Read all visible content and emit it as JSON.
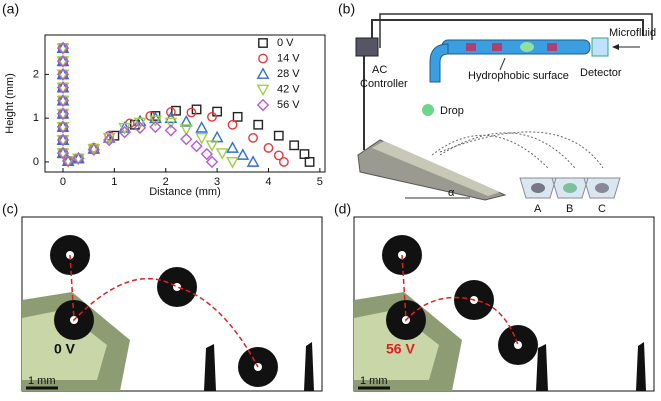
{
  "chart_data": {
    "type": "scatter",
    "xlabel": "Distance (mm)",
    "ylabel": "Height (mm)",
    "xlim": [
      -0.35,
      5.1
    ],
    "ylim": [
      -0.23,
      2.9
    ],
    "xticks": [
      0,
      1,
      2,
      3,
      4,
      5
    ],
    "yticks": [
      0,
      1,
      2
    ],
    "legend": "upper right",
    "series": [
      {
        "name": "0 V",
        "color": "#222222",
        "marker": "square",
        "x": [
          0,
          0,
          0,
          0,
          0,
          0,
          0,
          0,
          0,
          0.1,
          0.3,
          0.6,
          1.0,
          1.4,
          1.8,
          2.2,
          2.6,
          3.0,
          3.4,
          3.8,
          4.2,
          4.5,
          4.7,
          4.8
        ],
        "y": [
          2.6,
          2.3,
          2.0,
          1.7,
          1.4,
          1.1,
          0.8,
          0.5,
          0.2,
          0.02,
          0.08,
          0.3,
          0.6,
          0.85,
          1.05,
          1.17,
          1.2,
          1.15,
          1.03,
          0.85,
          0.6,
          0.38,
          0.18,
          0
        ]
      },
      {
        "name": "14 V",
        "color": "#e8393a",
        "marker": "circle",
        "x": [
          0,
          0,
          0,
          0,
          0,
          0,
          0,
          0,
          0,
          0.1,
          0.3,
          0.6,
          0.9,
          1.3,
          1.7,
          2.1,
          2.5,
          2.9,
          3.3,
          3.7,
          4.0,
          4.2,
          4.3
        ],
        "y": [
          2.6,
          2.3,
          2.0,
          1.7,
          1.4,
          1.1,
          0.8,
          0.5,
          0.2,
          0.02,
          0.08,
          0.32,
          0.6,
          0.88,
          1.05,
          1.14,
          1.13,
          1.03,
          0.85,
          0.55,
          0.32,
          0.15,
          0
        ]
      },
      {
        "name": "28 V",
        "color": "#2e6fd6",
        "marker": "triangle",
        "x": [
          0,
          0,
          0,
          0,
          0,
          0,
          0,
          0,
          0,
          0.1,
          0.3,
          0.6,
          0.9,
          1.2,
          1.5,
          1.8,
          2.1,
          2.4,
          2.7,
          3.0,
          3.3,
          3.5,
          3.7
        ],
        "y": [
          2.6,
          2.3,
          2.0,
          1.7,
          1.4,
          1.1,
          0.8,
          0.5,
          0.2,
          0.02,
          0.08,
          0.3,
          0.55,
          0.78,
          0.93,
          1.0,
          1.0,
          0.92,
          0.78,
          0.56,
          0.32,
          0.16,
          0
        ]
      },
      {
        "name": "42 V",
        "color": "#9ed13c",
        "marker": "triangle-down",
        "x": [
          0,
          0,
          0,
          0,
          0,
          0,
          0,
          0,
          0,
          0.1,
          0.3,
          0.6,
          0.9,
          1.2,
          1.5,
          1.8,
          2.1,
          2.4,
          2.7,
          2.9,
          3.1,
          3.3
        ],
        "y": [
          2.6,
          2.3,
          2.0,
          1.7,
          1.4,
          1.1,
          0.8,
          0.5,
          0.2,
          0.02,
          0.08,
          0.3,
          0.55,
          0.78,
          0.9,
          0.95,
          0.9,
          0.75,
          0.55,
          0.38,
          0.2,
          0
        ]
      },
      {
        "name": "56 V",
        "color": "#b65ad6",
        "marker": "diamond",
        "x": [
          0,
          0,
          0,
          0,
          0,
          0,
          0,
          0,
          0,
          0.1,
          0.3,
          0.6,
          0.9,
          1.2,
          1.5,
          1.8,
          2.1,
          2.4,
          2.6,
          2.8,
          2.9
        ],
        "y": [
          2.6,
          2.3,
          2.0,
          1.7,
          1.4,
          1.1,
          0.8,
          0.5,
          0.2,
          0.02,
          0.08,
          0.28,
          0.5,
          0.68,
          0.78,
          0.8,
          0.72,
          0.52,
          0.36,
          0.18,
          0
        ]
      }
    ]
  },
  "panel_labels": [
    "(a)",
    "(b)",
    "(c)",
    "(d)"
  ],
  "diagram": {
    "ac_controller": [
      "AC",
      "Controller"
    ],
    "microfluid": "Microfluid",
    "hydrophobic_surface": "Hydrophobic surface",
    "detector": "Detector",
    "drop": "Drop",
    "cups": [
      "A",
      "B",
      "C"
    ],
    "angle": "α"
  },
  "photos": [
    {
      "voltage": "0 V",
      "scale": "1 mm"
    },
    {
      "voltage": "56 V",
      "scale": "1 mm"
    }
  ]
}
